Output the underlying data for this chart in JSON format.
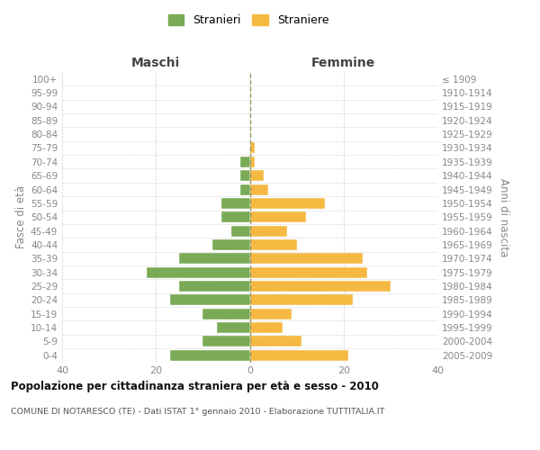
{
  "age_groups": [
    "0-4",
    "5-9",
    "10-14",
    "15-19",
    "20-24",
    "25-29",
    "30-34",
    "35-39",
    "40-44",
    "45-49",
    "50-54",
    "55-59",
    "60-64",
    "65-69",
    "70-74",
    "75-79",
    "80-84",
    "85-89",
    "90-94",
    "95-99",
    "100+"
  ],
  "birth_years": [
    "2005-2009",
    "2000-2004",
    "1995-1999",
    "1990-1994",
    "1985-1989",
    "1980-1984",
    "1975-1979",
    "1970-1974",
    "1965-1969",
    "1960-1964",
    "1955-1959",
    "1950-1954",
    "1945-1949",
    "1940-1944",
    "1935-1939",
    "1930-1934",
    "1925-1929",
    "1920-1924",
    "1915-1919",
    "1910-1914",
    "≤ 1909"
  ],
  "maschi": [
    17,
    10,
    7,
    10,
    17,
    15,
    22,
    15,
    8,
    4,
    6,
    6,
    2,
    2,
    2,
    0,
    0,
    0,
    0,
    0,
    0
  ],
  "femmine": [
    21,
    11,
    7,
    9,
    22,
    30,
    25,
    24,
    10,
    8,
    12,
    16,
    4,
    3,
    1,
    1,
    0,
    0,
    0,
    0,
    0
  ],
  "maschi_color": "#7aaa55",
  "femmine_color": "#f5b942",
  "title": "Popolazione per cittadinanza straniera per età e sesso - 2010",
  "subtitle": "COMUNE DI NOTARESCO (TE) - Dati ISTAT 1° gennaio 2010 - Elaborazione TUTTITALIA.IT",
  "legend_maschi": "Stranieri",
  "legend_femmine": "Straniere",
  "header_left": "Maschi",
  "header_right": "Femmine",
  "ylabel_left": "Fasce di età",
  "ylabel_right": "Anni di nascita",
  "xlim": 40,
  "bg_color": "#ffffff",
  "grid_color": "#d0d0d0",
  "tick_color": "#888888",
  "header_color": "#444444",
  "title_color": "#111111",
  "subtitle_color": "#555555",
  "center_line_color": "#999966"
}
